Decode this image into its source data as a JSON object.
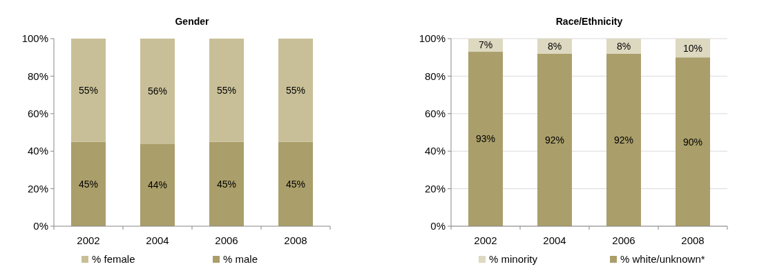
{
  "chart_data": [
    {
      "type": "bar",
      "title": "Gender",
      "categories": [
        "2002",
        "2004",
        "2006",
        "2008"
      ],
      "stacked": true,
      "ylim": [
        0,
        100
      ],
      "yticks": [
        {
          "value": 0,
          "label": "0%"
        },
        {
          "value": 20,
          "label": "20%"
        },
        {
          "value": 40,
          "label": "40%"
        },
        {
          "value": 60,
          "label": "60%"
        },
        {
          "value": 80,
          "label": "80%"
        },
        {
          "value": 100,
          "label": "100%"
        }
      ],
      "grid": false,
      "legend": "bottom",
      "series": [
        {
          "name": "% male",
          "color": "#aa9e6a",
          "values": [
            45,
            44,
            45,
            45
          ],
          "value_labels": [
            "45%",
            "44%",
            "45%",
            "45%"
          ]
        },
        {
          "name": "% female",
          "color": "#c8bf98",
          "values": [
            55,
            56,
            55,
            55
          ],
          "value_labels": [
            "55%",
            "56%",
            "55%",
            "55%"
          ]
        }
      ]
    },
    {
      "type": "bar",
      "title": "Race/Ethnicity",
      "categories": [
        "2002",
        "2004",
        "2006",
        "2008"
      ],
      "stacked": true,
      "ylim": [
        0,
        100
      ],
      "yticks": [
        {
          "value": 0,
          "label": "0%"
        },
        {
          "value": 20,
          "label": "20%"
        },
        {
          "value": 40,
          "label": "40%"
        },
        {
          "value": 60,
          "label": "60%"
        },
        {
          "value": 80,
          "label": "80%"
        },
        {
          "value": 100,
          "label": "100%"
        }
      ],
      "grid": "y",
      "legend": "bottom",
      "series": [
        {
          "name": "% white/unknown*",
          "color": "#aa9e6a",
          "values": [
            93,
            92,
            92,
            90
          ],
          "value_labels": [
            "93%",
            "92%",
            "92%",
            "90%"
          ]
        },
        {
          "name": "% minority",
          "color": "#ddd8c0",
          "values": [
            7,
            8,
            8,
            10
          ],
          "value_labels": [
            "7%",
            "8%",
            "8%",
            "10%"
          ]
        }
      ]
    }
  ]
}
